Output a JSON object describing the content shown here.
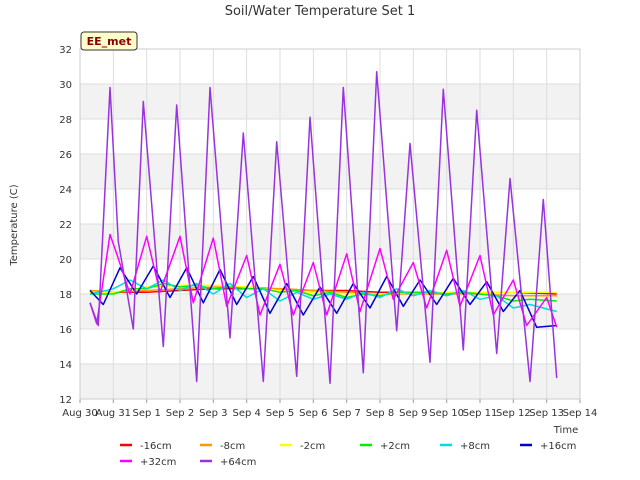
{
  "chart_data": {
    "type": "line",
    "title": "Soil/Water Temperature Set 1",
    "xlabel": "Time",
    "ylabel": "Temperature (C)",
    "badge": "EE_met",
    "ylim": [
      12,
      32
    ],
    "yticks": [
      12,
      14,
      16,
      18,
      20,
      22,
      24,
      26,
      28,
      30,
      32
    ],
    "xlim": [
      0,
      15
    ],
    "xtick_labels": [
      "Aug 30",
      "Aug 31",
      "Sep 1",
      "Sep 2",
      "Sep 3",
      "Sep 4",
      "Sep 5",
      "Sep 6",
      "Sep 7",
      "Sep 8",
      "Sep 9",
      "Sep 10",
      "Sep 11",
      "Sep 12",
      "Sep 13",
      "Sep 14"
    ],
    "grid": true,
    "legend_position": "bottom",
    "series": [
      {
        "name": "-16cm",
        "color": "#ff0000",
        "x": [
          0.3,
          1.0,
          2.0,
          3.0,
          4.0,
          5.0,
          6.0,
          7.0,
          8.0,
          9.0,
          10.0,
          11.0,
          12.0,
          13.0,
          14.3
        ],
        "y": [
          18.2,
          18.1,
          18.1,
          18.2,
          18.3,
          18.3,
          18.3,
          18.2,
          18.2,
          18.1,
          18.1,
          18.1,
          18.1,
          18.1,
          18.0
        ]
      },
      {
        "name": "-8cm",
        "color": "#ff9900",
        "x": [
          0.3,
          1.0,
          2.0,
          3.0,
          4.0,
          5.0,
          6.0,
          7.0,
          8.0,
          9.0,
          10.0,
          11.0,
          12.0,
          13.0,
          14.3
        ],
        "y": [
          18.2,
          18.1,
          18.2,
          18.3,
          18.4,
          18.4,
          18.3,
          18.2,
          18.1,
          18.0,
          18.0,
          18.0,
          18.0,
          17.9,
          17.9
        ]
      },
      {
        "name": "-2cm",
        "color": "#ffff00",
        "x": [
          0.3,
          1.0,
          2.0,
          3.0,
          4.0,
          5.0,
          6.0,
          7.0,
          8.0,
          9.0,
          10.0,
          11.0,
          12.0,
          13.0,
          14.3
        ],
        "y": [
          18.1,
          18.1,
          18.4,
          18.5,
          18.5,
          18.4,
          18.2,
          18.1,
          18.0,
          18.0,
          18.1,
          18.1,
          18.1,
          18.1,
          18.1
        ]
      },
      {
        "name": "+2cm",
        "color": "#00ee00",
        "x": [
          0.3,
          1.0,
          1.5,
          2.0,
          2.5,
          3.0,
          3.5,
          4.0,
          4.5,
          5.0,
          5.5,
          6.0,
          6.5,
          7.0,
          7.5,
          8.0,
          8.5,
          9.0,
          9.5,
          10.0,
          10.5,
          11.0,
          11.5,
          12.0,
          12.5,
          13.0,
          13.5,
          14.3
        ],
        "y": [
          18.0,
          18.0,
          18.3,
          18.3,
          18.6,
          18.4,
          18.5,
          18.3,
          18.4,
          18.3,
          18.3,
          18.1,
          18.2,
          17.9,
          18.1,
          17.8,
          18.0,
          17.9,
          18.1,
          18.1,
          18.1,
          18.0,
          18.1,
          18.0,
          17.9,
          17.6,
          17.7,
          17.6
        ]
      },
      {
        "name": "+8cm",
        "color": "#00dddd",
        "x": [
          0.3,
          1.0,
          1.5,
          2.0,
          2.5,
          3.0,
          3.5,
          4.0,
          4.5,
          5.0,
          5.5,
          6.0,
          6.5,
          7.0,
          7.5,
          8.0,
          8.5,
          9.0,
          9.5,
          10.0,
          10.5,
          11.0,
          11.5,
          12.0,
          12.5,
          13.0,
          13.5,
          14.3
        ],
        "y": [
          18.0,
          18.3,
          18.8,
          18.3,
          18.8,
          18.2,
          18.6,
          18.0,
          18.6,
          17.8,
          18.3,
          17.6,
          18.1,
          17.7,
          18.0,
          17.7,
          18.1,
          17.8,
          18.3,
          17.9,
          18.2,
          17.9,
          18.2,
          17.7,
          17.9,
          17.2,
          17.4,
          17.0
        ]
      },
      {
        "name": "+16cm",
        "color": "#0000cc",
        "x": [
          0.3,
          0.7,
          1.2,
          1.7,
          2.2,
          2.7,
          3.2,
          3.7,
          4.2,
          4.7,
          5.2,
          5.7,
          6.2,
          6.7,
          7.2,
          7.7,
          8.2,
          8.7,
          9.2,
          9.7,
          10.2,
          10.7,
          11.2,
          11.7,
          12.2,
          12.7,
          13.2,
          13.7,
          14.3
        ],
        "y": [
          18.2,
          17.4,
          19.5,
          18.0,
          19.6,
          17.8,
          19.5,
          17.5,
          19.4,
          17.4,
          19.0,
          16.9,
          18.6,
          16.8,
          18.4,
          16.9,
          18.6,
          17.2,
          19.0,
          17.3,
          18.8,
          17.4,
          18.9,
          17.4,
          18.7,
          17.0,
          18.2,
          16.1,
          16.2
        ]
      },
      {
        "name": "+32cm",
        "color": "#ff00ff",
        "x": [
          0.3,
          0.5,
          0.9,
          1.1,
          1.5,
          2.0,
          2.4,
          3.0,
          3.4,
          4.0,
          4.4,
          5.0,
          5.4,
          6.0,
          6.4,
          7.0,
          7.4,
          8.0,
          8.4,
          9.0,
          9.4,
          10.0,
          10.4,
          11.0,
          11.4,
          12.0,
          12.4,
          13.0,
          13.4,
          14.0,
          14.3
        ],
        "y": [
          17.5,
          16.3,
          21.4,
          20.3,
          18.0,
          21.3,
          18.1,
          21.3,
          17.5,
          21.2,
          17.3,
          20.2,
          16.8,
          19.7,
          16.8,
          19.8,
          16.8,
          20.3,
          17.0,
          20.6,
          17.7,
          19.8,
          17.2,
          20.5,
          17.3,
          20.2,
          16.8,
          18.8,
          16.2,
          17.8,
          16.1
        ]
      },
      {
        "name": "+64cm",
        "color": "#9933dd",
        "x": [
          0.3,
          0.55,
          0.9,
          1.15,
          1.6,
          1.9,
          2.5,
          2.9,
          3.5,
          3.9,
          4.5,
          4.9,
          5.5,
          5.9,
          6.5,
          6.9,
          7.5,
          7.9,
          8.5,
          8.9,
          9.5,
          9.9,
          10.5,
          10.9,
          11.5,
          11.9,
          12.5,
          12.9,
          13.5,
          13.9,
          14.3
        ],
        "y": [
          17.5,
          16.2,
          29.8,
          21.0,
          16.0,
          29.0,
          15.0,
          28.8,
          13.0,
          29.8,
          15.5,
          27.2,
          13.0,
          26.7,
          13.3,
          28.1,
          12.9,
          29.8,
          13.5,
          30.7,
          15.9,
          26.6,
          14.1,
          29.7,
          14.8,
          28.5,
          14.6,
          24.6,
          13.0,
          23.4,
          13.2
        ]
      }
    ]
  }
}
